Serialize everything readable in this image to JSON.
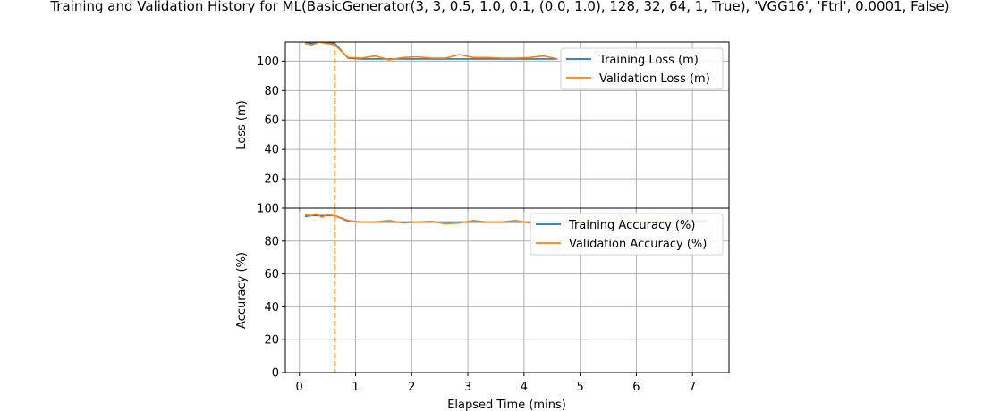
{
  "figure": {
    "title": "Training and Validation History for ML(BasicGenerator(3, 3, 0.5, 1.0, 0.1, (0.0, 1.0), 128, 32, 64, 1, True), 'VGG16', 'Ftrl', 0.0001, False)",
    "xlabel": "Elapsed Time (mins)"
  },
  "colors": {
    "training": "#1f77b4",
    "validation": "#ff7f0e",
    "grid": "#b0b0b0",
    "axis": "#000000"
  },
  "chart_data": [
    {
      "type": "line",
      "ylabel": "Loss (m)",
      "xlim": [
        -0.25,
        7.65
      ],
      "ylim": [
        0,
        113
      ],
      "xticks": [
        0,
        1,
        2,
        3,
        4,
        5,
        6,
        7
      ],
      "yticks": [
        20,
        40,
        60,
        80,
        100
      ],
      "grid": true,
      "legend_position": "upper right",
      "best_epoch_x": 0.63,
      "series": [
        {
          "name": "Training Loss (m)",
          "color": "#1f77b4",
          "x": [
            0.1,
            0.22,
            0.35,
            0.49,
            0.63,
            0.87,
            1.1,
            1.35,
            1.6,
            1.85,
            2.1,
            2.35,
            2.6,
            2.85,
            3.1,
            3.35,
            3.6,
            3.85,
            4.1,
            4.35,
            4.6
          ],
          "y": [
            113,
            112,
            113,
            113,
            112,
            102,
            101.5,
            101.5,
            101.5,
            101.5,
            101.5,
            101.5,
            101.5,
            101.5,
            101.5,
            101.5,
            101.5,
            101.5,
            101.5,
            101.5,
            101.5
          ]
        },
        {
          "name": "Validation Loss (m)",
          "color": "#ff7f0e",
          "x": [
            0.1,
            0.22,
            0.35,
            0.49,
            0.63,
            0.87,
            1.1,
            1.35,
            1.6,
            1.85,
            2.1,
            2.35,
            2.6,
            2.85,
            3.1,
            3.35,
            3.6,
            3.85,
            4.1,
            4.35,
            4.6
          ],
          "y": [
            112,
            111,
            113,
            112,
            111,
            102.5,
            102,
            103.5,
            101,
            102.5,
            103,
            102,
            102,
            104.5,
            102.5,
            102.5,
            102,
            102,
            102.5,
            103.5,
            101.5
          ]
        }
      ]
    },
    {
      "type": "line",
      "ylabel": "Accuracy (%)",
      "xlim": [
        -0.25,
        7.65
      ],
      "ylim": [
        0,
        100
      ],
      "xticks": [
        0,
        1,
        2,
        3,
        4,
        5,
        6,
        7
      ],
      "xticklabels": [
        "0",
        "1",
        "2",
        "3",
        "4",
        "5",
        "6",
        "7"
      ],
      "yticks": [
        0,
        20,
        40,
        60,
        80,
        100
      ],
      "grid": true,
      "legend_position": "upper right",
      "best_epoch_x": 0.63,
      "series": [
        {
          "name": "Training Accuracy (%)",
          "color": "#1f77b4",
          "x": [
            0.1,
            0.22,
            0.35,
            0.49,
            0.63,
            0.87,
            1.1,
            1.35,
            1.6,
            1.85,
            2.1,
            2.35,
            2.6,
            2.85,
            3.1,
            3.35,
            3.6,
            3.85,
            4.1,
            4.35,
            4.6,
            4.85,
            5.1,
            5.35,
            5.6,
            5.85,
            6.1,
            6.35,
            6.6,
            6.85,
            7.1,
            7.25
          ],
          "y": [
            95,
            95.5,
            95.5,
            95.5,
            95.5,
            92,
            91.5,
            91.5,
            91.5,
            91.5,
            91.5,
            91.5,
            91.5,
            91.5,
            91.5,
            91.5,
            91.5,
            91.5,
            91.5,
            91.5,
            91.5,
            91.5,
            91.5,
            91.5,
            91.5,
            91.5,
            91.5,
            91.5,
            91.5,
            91.5,
            91.5,
            91.5
          ]
        },
        {
          "name": "Validation Accuracy (%)",
          "color": "#ff7f0e",
          "x": [
            0.1,
            0.22,
            0.3,
            0.4,
            0.49,
            0.63,
            0.87,
            1.1,
            1.35,
            1.6,
            1.85,
            2.1,
            2.35,
            2.6,
            2.85,
            3.1,
            3.35,
            3.6,
            3.85,
            4.1,
            4.35,
            4.6,
            4.85,
            5.1,
            5.35,
            5.6,
            5.85,
            6.1,
            6.35,
            6.6,
            6.85,
            7.1,
            7.25
          ],
          "y": [
            96,
            95.5,
            96.5,
            94.5,
            96,
            95.5,
            92.5,
            91.5,
            91.5,
            92.5,
            91,
            91.5,
            92,
            90.5,
            91,
            92.5,
            91.5,
            91.5,
            92.5,
            91,
            91.5,
            91.5,
            92,
            91.5,
            92,
            91.5,
            91.5,
            92,
            91.5,
            92,
            91.5,
            92.5,
            92.5
          ]
        }
      ]
    }
  ]
}
